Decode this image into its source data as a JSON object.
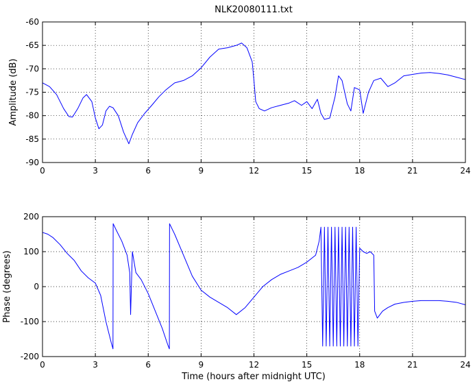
{
  "chart_data": [
    {
      "type": "line",
      "title": "NLK20080111.txt",
      "xlabel": "",
      "ylabel": "Amplitude (dB)",
      "xlim": [
        0,
        24
      ],
      "ylim": [
        -90,
        -60
      ],
      "xticks": [
        0,
        3,
        6,
        9,
        12,
        15,
        18,
        21,
        24
      ],
      "yticks": [
        -60,
        -65,
        -70,
        -75,
        -80,
        -85,
        -90
      ],
      "grid": true,
      "color": "#0000ff",
      "series": [
        {
          "x": [
            0,
            0.4,
            0.8,
            1.2,
            1.5,
            1.7,
            2.0,
            2.3,
            2.5,
            2.8,
            3.0,
            3.2,
            3.4,
            3.6,
            3.8,
            4.0,
            4.3,
            4.6,
            4.9,
            5.1,
            5.4,
            5.8,
            6.2,
            6.6,
            7.0,
            7.5,
            8.0,
            8.5,
            9.0,
            9.5,
            10.0,
            10.5,
            11.0,
            11.3,
            11.6,
            11.9,
            12.0,
            12.1,
            12.3,
            12.6,
            13.0,
            13.5,
            14.0,
            14.3,
            14.7,
            15.0,
            15.3,
            15.6,
            15.8,
            16.0,
            16.3,
            16.6,
            16.8,
            17.0,
            17.3,
            17.5,
            17.7,
            18.0,
            18.2,
            18.5,
            18.8,
            19.2,
            19.6,
            20.0,
            20.5,
            21.0,
            21.5,
            22.0,
            22.5,
            23.0,
            23.5,
            24.0
          ],
          "y": [
            -73,
            -73.8,
            -75.5,
            -78.5,
            -80.2,
            -80.3,
            -78.5,
            -76.2,
            -75.5,
            -77.0,
            -80.5,
            -82.8,
            -82.0,
            -79.0,
            -78.0,
            -78.3,
            -80.0,
            -83.5,
            -86.0,
            -84.0,
            -81.5,
            -79.5,
            -77.8,
            -76.0,
            -74.5,
            -73.0,
            -72.5,
            -71.5,
            -69.8,
            -67.5,
            -65.8,
            -65.5,
            -65.0,
            -64.5,
            -65.5,
            -68.5,
            -72.5,
            -77.0,
            -78.5,
            -79.0,
            -78.3,
            -77.8,
            -77.3,
            -76.8,
            -77.8,
            -77.0,
            -78.5,
            -76.5,
            -79.5,
            -80.8,
            -80.5,
            -76.0,
            -71.5,
            -72.5,
            -77.5,
            -79.0,
            -74.0,
            -74.5,
            -79.5,
            -75.0,
            -72.5,
            -72.0,
            -73.8,
            -73.0,
            -71.5,
            -71.2,
            -70.9,
            -70.8,
            -71.0,
            -71.3,
            -71.8,
            -72.3
          ]
        }
      ]
    },
    {
      "type": "line",
      "title": "",
      "xlabel": "Time (hours after midnight UTC)",
      "ylabel": "Phase (degrees)",
      "xlim": [
        0,
        24
      ],
      "ylim": [
        -200,
        200
      ],
      "xticks": [
        0,
        3,
        6,
        9,
        12,
        15,
        18,
        21,
        24
      ],
      "yticks": [
        200,
        100,
        0,
        -100,
        -200
      ],
      "grid": true,
      "color": "#0000ff",
      "series": [
        {
          "x": [
            0,
            0.3,
            0.6,
            1.0,
            1.4,
            1.8,
            2.2,
            2.6,
            3.0,
            3.3,
            3.6,
            3.9,
            4.0,
            4.01,
            4.2,
            4.5,
            4.8,
            4.95,
            5.0,
            5.1,
            5.3,
            5.6,
            6.0,
            6.4,
            6.8,
            7.1,
            7.2,
            7.21,
            7.5,
            8.0,
            8.5,
            9.0,
            9.5,
            10.0,
            10.5,
            11.0,
            11.5,
            12.0,
            12.5,
            13.0,
            13.5,
            14.0,
            14.5,
            15.0,
            15.5,
            15.7,
            15.8,
            15.9,
            16.0,
            16.1,
            16.2,
            16.3,
            16.4,
            16.5,
            16.6,
            16.7,
            16.8,
            16.9,
            17.0,
            17.1,
            17.2,
            17.3,
            17.4,
            17.5,
            17.6,
            17.7,
            17.8,
            17.9,
            18.0,
            18.2,
            18.4,
            18.6,
            18.8,
            18.85,
            19.0,
            19.3,
            19.6,
            20.0,
            20.5,
            21.0,
            21.5,
            22.0,
            22.5,
            23.0,
            23.5,
            24.0
          ],
          "y": [
            155,
            150,
            140,
            120,
            95,
            75,
            45,
            25,
            10,
            -25,
            -100,
            -160,
            -178,
            180,
            160,
            130,
            90,
            40,
            -80,
            100,
            40,
            20,
            -20,
            -70,
            -120,
            -165,
            -178,
            180,
            150,
            90,
            30,
            -10,
            -30,
            -45,
            -60,
            -80,
            -60,
            -30,
            0,
            20,
            35,
            45,
            55,
            70,
            90,
            130,
            170,
            -170,
            170,
            -170,
            170,
            -170,
            170,
            -170,
            170,
            -170,
            170,
            -170,
            170,
            -170,
            170,
            -170,
            170,
            -170,
            170,
            -170,
            170,
            -170,
            110,
            100,
            95,
            100,
            90,
            -70,
            -90,
            -70,
            -60,
            -50,
            -45,
            -42,
            -40,
            -40,
            -40,
            -42,
            -45,
            -52
          ]
        }
      ]
    }
  ]
}
